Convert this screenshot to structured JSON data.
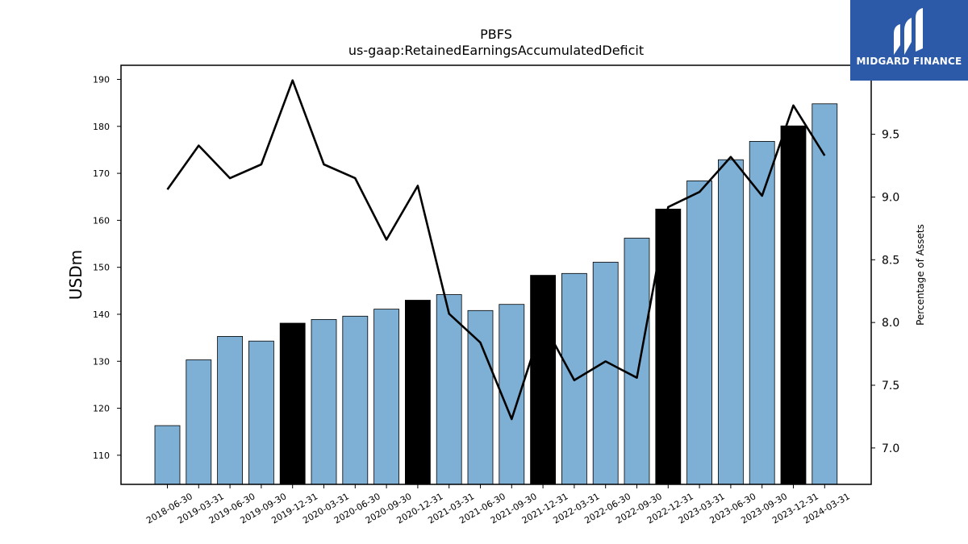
{
  "brand": {
    "name": "MIDGARD FINANCE",
    "bg": "#2d5aa8"
  },
  "chart_data": {
    "type": "bar",
    "title": "PBFS",
    "subtitle": "us-gaap:RetainedEarningsAccumulatedDeficit",
    "ylabel": "USDm",
    "y2label": "Percentage of Assets",
    "ylim": [
      103.8,
      193
    ],
    "y2lim": [
      6.71,
      10.05
    ],
    "yticks": [
      110,
      120,
      130,
      140,
      150,
      160,
      170,
      180,
      190
    ],
    "y2ticks": [
      "7.0",
      "7.5",
      "8.0",
      "8.5",
      "9.0",
      "9.5"
    ],
    "categories": [
      "2018-06-30",
      "2019-03-31",
      "2019-06-30",
      "2019-09-30",
      "2019-12-31",
      "2020-03-31",
      "2020-06-30",
      "2020-09-30",
      "2020-12-31",
      "2021-03-31",
      "2021-06-30",
      "2021-09-30",
      "2021-12-31",
      "2022-03-31",
      "2022-06-30",
      "2022-09-30",
      "2022-12-31",
      "2023-03-31",
      "2023-06-30",
      "2023-09-30",
      "2023-12-31",
      "2024-03-31"
    ],
    "series": [
      {
        "values": [
          116.3,
          130.3,
          135.3,
          134.3,
          138.1,
          138.9,
          139.6,
          141.1,
          143.0,
          144.2,
          140.8,
          142.1,
          148.3,
          148.7,
          151.1,
          156.2,
          162.4,
          168.4,
          172.9,
          176.8,
          180.1,
          184.8
        ],
        "axis": "left"
      },
      {
        "values": [
          9.06,
          9.41,
          9.15,
          9.26,
          9.93,
          9.26,
          9.15,
          8.66,
          9.09,
          8.07,
          7.84,
          7.23,
          8.0,
          7.54,
          7.69,
          7.56,
          8.92,
          9.04,
          9.32,
          9.01,
          9.73,
          9.33
        ],
        "axis": "right"
      }
    ],
    "bar_colors": {
      "quarter": "#7eb0d5",
      "year_end": "#000000"
    },
    "year_end_flags": [
      0,
      0,
      0,
      0,
      1,
      0,
      0,
      0,
      1,
      0,
      0,
      0,
      1,
      0,
      0,
      0,
      1,
      0,
      0,
      0,
      1,
      0
    ],
    "line_color": "#000000",
    "grid": false
  }
}
